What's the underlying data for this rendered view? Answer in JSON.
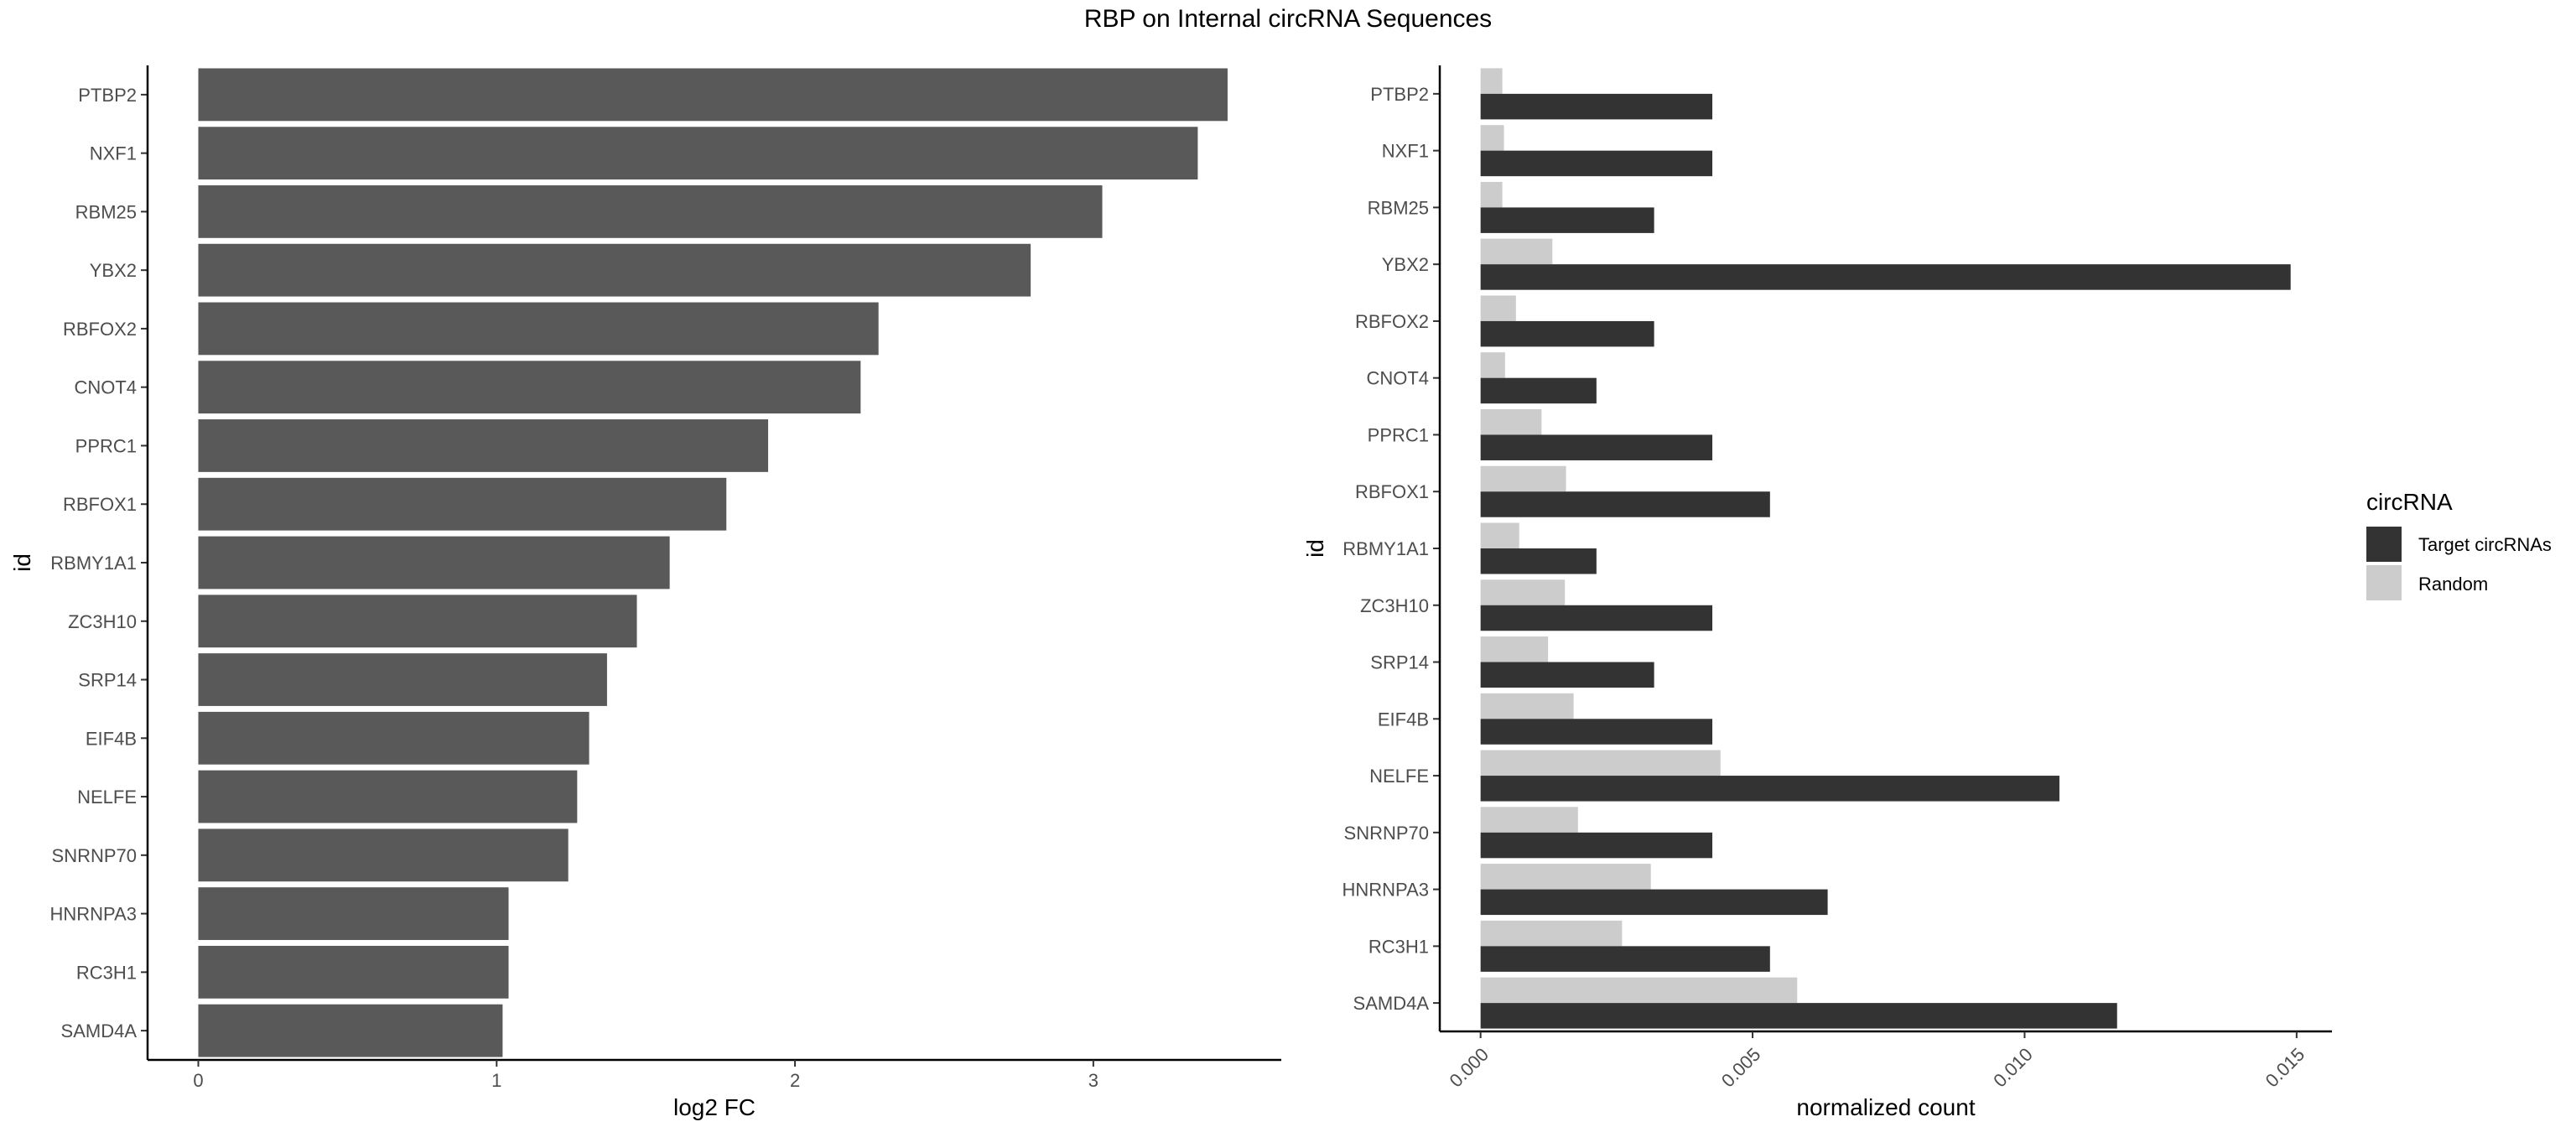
{
  "figure_title": "RBP on Internal circRNA Sequences",
  "colors": {
    "left_bar": "#595959",
    "target": "#333333",
    "random": "#cccccc",
    "axis": "#000000",
    "tick_text": "#4d4d4d"
  },
  "legend": {
    "title": "circRNA",
    "items": [
      "Target circRNAs",
      "Random"
    ],
    "placement": "right"
  },
  "chart_data": [
    {
      "type": "bar",
      "orientation": "horizontal",
      "title": "",
      "xlabel": "log2 FC",
      "ylabel": "id",
      "categories": [
        "PTBP2",
        "NXF1",
        "RBM25",
        "YBX2",
        "RBFOX2",
        "CNOT4",
        "PPRC1",
        "RBFOX1",
        "RBMY1A1",
        "ZC3H10",
        "SRP14",
        "EIF4B",
        "NELFE",
        "SNRNP70",
        "HNRNPA3",
        "RC3H1",
        "SAMD4A"
      ],
      "values": [
        3.45,
        3.35,
        3.03,
        2.79,
        2.28,
        2.22,
        1.91,
        1.77,
        1.58,
        1.47,
        1.37,
        1.31,
        1.27,
        1.24,
        1.04,
        1.04,
        1.02
      ],
      "xlim": [
        -0.17,
        3.63
      ],
      "xticks": [
        "0",
        "1",
        "2",
        "3"
      ],
      "grid": false
    },
    {
      "type": "bar",
      "orientation": "horizontal",
      "title": "",
      "xlabel": "normalized count",
      "ylabel": "id",
      "categories": [
        "PTBP2",
        "NXF1",
        "RBM25",
        "YBX2",
        "RBFOX2",
        "CNOT4",
        "PPRC1",
        "RBFOX1",
        "RBMY1A1",
        "ZC3H10",
        "SRP14",
        "EIF4B",
        "NELFE",
        "SNRNP70",
        "HNRNPA3",
        "RC3H1",
        "SAMD4A"
      ],
      "series": [
        {
          "name": "Target circRNAs",
          "values": [
            0.00426,
            0.00426,
            0.00319,
            0.01489,
            0.00319,
            0.00213,
            0.00426,
            0.00532,
            0.00213,
            0.00426,
            0.00319,
            0.00426,
            0.01064,
            0.00426,
            0.00638,
            0.00532,
            0.0117
          ]
        },
        {
          "name": "Random",
          "values": [
            0.0004,
            0.00043,
            0.0004,
            0.00132,
            0.00065,
            0.00045,
            0.00112,
            0.00157,
            0.00071,
            0.00155,
            0.00124,
            0.00171,
            0.00441,
            0.00179,
            0.00313,
            0.0026,
            0.00582
          ]
        }
      ],
      "xlim": [
        -0.00075,
        0.01565
      ],
      "xticks": [
        "0.000",
        "0.005",
        "0.010",
        "0.015"
      ],
      "grid": false
    }
  ]
}
